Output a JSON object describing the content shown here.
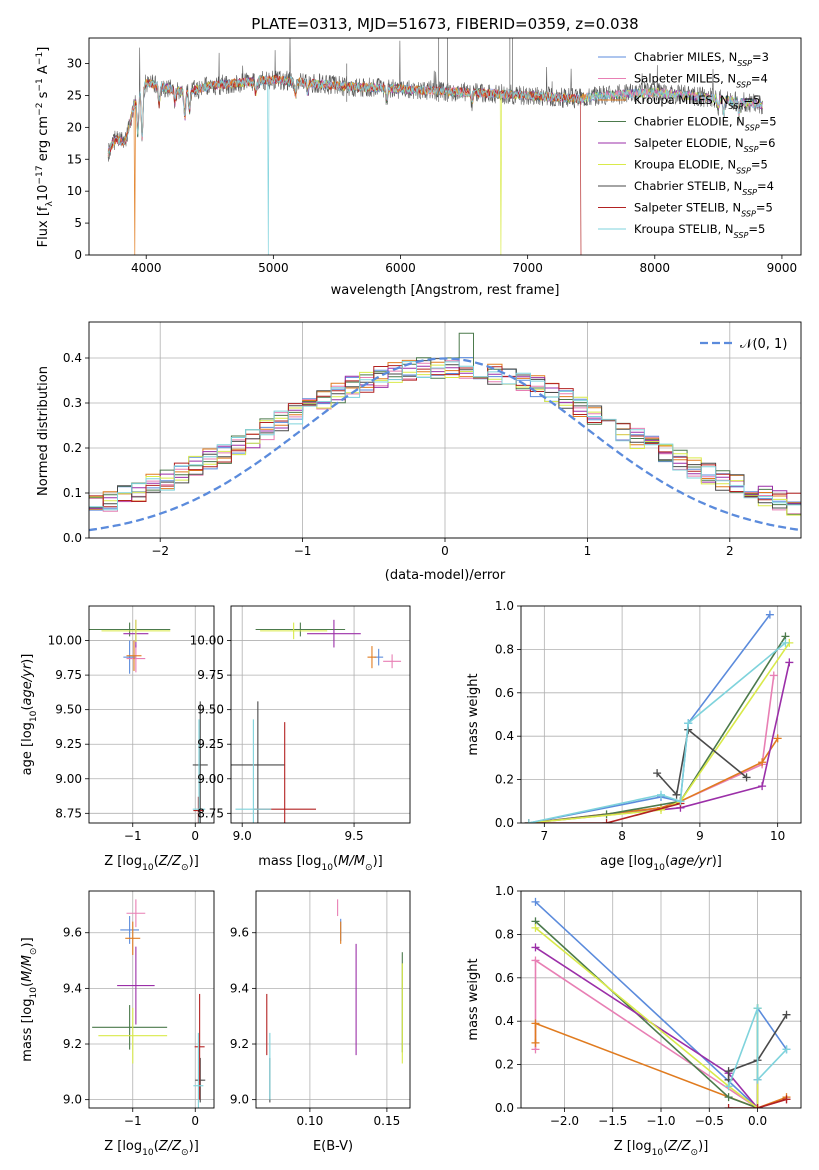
{
  "colors": [
    "#5b8bdc",
    "#e87fb4",
    "#e07b1f",
    "#4c7a4c",
    "#9b2fa8",
    "#d9ea4a",
    "#4a4a4a",
    "#b22222",
    "#7fd3dc"
  ],
  "chart_data": [
    {
      "id": "spectrum",
      "type": "line",
      "title": "PLATE=0313, MJD=51673, FIBERID=0359, z=0.038",
      "xlabel": "wavelength [Angstrom, rest frame]",
      "ylabel": "Flux [f_λ10^-17 erg cm^-2 s^-1 A^-1]",
      "xlim": [
        3550,
        9150
      ],
      "ylim": [
        0,
        34
      ],
      "xticks": [
        4000,
        5000,
        6000,
        7000,
        8000,
        9000
      ],
      "yticks": [
        0,
        5,
        10,
        15,
        20,
        25,
        30
      ],
      "grid": false,
      "legend_position": "top-right",
      "series": [
        {
          "name": "Chabrier MILES, N_SSP=3"
        },
        {
          "name": "Salpeter MILES, N_SSP=4"
        },
        {
          "name": "Kroupa MILES, N_SSP=5"
        },
        {
          "name": "Chabrier ELODIE, N_SSP=5"
        },
        {
          "name": "Salpeter ELODIE, N_SSP=6"
        },
        {
          "name": "Kroupa ELODIE, N_SSP=5"
        },
        {
          "name": "Chabrier STELIB, N_SSP=4"
        },
        {
          "name": "Salpeter STELIB, N_SSP=5"
        },
        {
          "name": "Kroupa STELIB, N_SSP=5"
        }
      ],
      "continuum": {
        "x": [
          3700,
          3800,
          3900,
          4000,
          4100,
          4300,
          4500,
          5000,
          5500,
          6000,
          6500,
          7000,
          7400,
          7600,
          8000,
          8500,
          8850
        ],
        "y": [
          16,
          21,
          24,
          27,
          26.5,
          25.5,
          26.5,
          27.5,
          26.5,
          26,
          25.5,
          25,
          24.5,
          25,
          25.5,
          24.5,
          23.5
        ]
      },
      "dropouts": [
        {
          "series": 2,
          "x": 3910
        },
        {
          "series": 8,
          "x": 4960
        },
        {
          "series": 5,
          "x": 6790
        },
        {
          "series": 7,
          "x": 7420
        }
      ]
    },
    {
      "id": "residuals",
      "type": "step",
      "xlabel": "(data-model)/error",
      "ylabel": "Normed distribution",
      "xlim": [
        -2.5,
        2.5
      ],
      "ylim": [
        0,
        0.48
      ],
      "xticks": [
        -2,
        -1,
        0,
        1,
        2
      ],
      "yticks": [
        0.0,
        0.1,
        0.2,
        0.3,
        0.4
      ],
      "grid": true,
      "legend_position": "top-right",
      "reference": {
        "name": "𝒩(0, 1)",
        "mean": 0,
        "sigma": 1
      },
      "bins": {
        "start": -2.5,
        "width": 0.1,
        "count": 50
      }
    },
    {
      "id": "age_vs_Z",
      "type": "errorbar",
      "xlabel": "Z [log10(Z/Z⊙)]",
      "ylabel": "age [log10(age/yr)]",
      "xlim": [
        -1.7,
        0.3
      ],
      "ylim": [
        8.68,
        10.25
      ],
      "xticks": [
        -1,
        0
      ],
      "yticks": [
        8.75,
        9.0,
        9.25,
        9.5,
        9.75,
        10.0
      ],
      "grid": true,
      "points": [
        {
          "s": 0,
          "x": -1.05,
          "y": 9.88,
          "xe": 0.1,
          "ye": 0.12
        },
        {
          "s": 1,
          "x": -0.95,
          "y": 9.87,
          "xe": 0.15,
          "ye": 0.1
        },
        {
          "s": 2,
          "x": -0.98,
          "y": 9.89,
          "xe": 0.12,
          "ye": 0.11
        },
        {
          "s": 3,
          "x": -1.05,
          "y": 10.08,
          "xe": 0.65,
          "ye": 0.05
        },
        {
          "s": 4,
          "x": -0.95,
          "y": 10.05,
          "xe": 0.2,
          "ye": 0.1
        },
        {
          "s": 5,
          "x": -0.95,
          "y": 10.07,
          "xe": 0.55,
          "ye": 0.08
        },
        {
          "s": 6,
          "x": 0.08,
          "y": 9.1,
          "xe": 0.12,
          "ye": 0.46
        },
        {
          "s": 7,
          "x": 0.05,
          "y": 8.77,
          "xe": 0.08,
          "ye": 0.1
        },
        {
          "s": 8,
          "x": 0.06,
          "y": 8.78,
          "xe": 0.1,
          "ye": 0.65
        }
      ]
    },
    {
      "id": "age_vs_mass",
      "type": "errorbar",
      "xlabel": "mass [log10(M/M⊙)]",
      "ylabel": "",
      "xlim": [
        8.95,
        9.75
      ],
      "ylim": [
        8.68,
        10.25
      ],
      "xticks": [
        9.0,
        9.5
      ],
      "yticks": [
        8.75,
        9.0,
        9.25,
        9.5,
        9.75,
        10.0
      ],
      "grid": true,
      "points": [
        {
          "s": 0,
          "x": 9.61,
          "y": 9.88,
          "xe": 0.02,
          "ye": 0.06
        },
        {
          "s": 1,
          "x": 9.67,
          "y": 9.85,
          "xe": 0.04,
          "ye": 0.05
        },
        {
          "s": 2,
          "x": 9.58,
          "y": 9.88,
          "xe": 0.02,
          "ye": 0.08
        },
        {
          "s": 3,
          "x": 9.26,
          "y": 10.08,
          "xe": 0.2,
          "ye": 0.05
        },
        {
          "s": 4,
          "x": 9.41,
          "y": 10.05,
          "xe": 0.12,
          "ye": 0.1
        },
        {
          "s": 5,
          "x": 9.23,
          "y": 10.07,
          "xe": 0.15,
          "ye": 0.06
        },
        {
          "s": 6,
          "x": 9.07,
          "y": 9.1,
          "xe": 0.12,
          "ye": 0.46
        },
        {
          "s": 7,
          "x": 9.19,
          "y": 8.78,
          "xe": 0.14,
          "ye": 0.63
        },
        {
          "s": 8,
          "x": 9.05,
          "y": 8.78,
          "xe": 0.08,
          "ye": 0.65
        }
      ]
    },
    {
      "id": "weight_vs_age",
      "type": "line",
      "xlabel": "age [log10(age/yr)]",
      "ylabel": "mass weight",
      "xlim": [
        6.7,
        10.3
      ],
      "ylim": [
        0,
        1.0
      ],
      "xticks": [
        7,
        8,
        9,
        10
      ],
      "yticks": [
        0.0,
        0.2,
        0.4,
        0.6,
        0.8,
        1.0
      ],
      "grid": true,
      "series": [
        {
          "s": 0,
          "x": [
            6.8,
            8.5,
            8.75,
            8.85,
            9.9
          ],
          "y": [
            0.0,
            0.12,
            0.1,
            0.46,
            0.96
          ]
        },
        {
          "s": 1,
          "x": [
            6.8,
            8.5,
            8.75,
            9.8,
            9.95
          ],
          "y": [
            0.0,
            0.07,
            0.1,
            0.27,
            0.68
          ]
        },
        {
          "s": 2,
          "x": [
            6.8,
            8.5,
            8.75,
            9.8,
            10.0
          ],
          "y": [
            0.0,
            0.07,
            0.1,
            0.28,
            0.39
          ]
        },
        {
          "s": 3,
          "x": [
            6.8,
            7.8,
            8.75,
            10.1
          ],
          "y": [
            0.0,
            0.04,
            0.1,
            0.86
          ]
        },
        {
          "s": 4,
          "x": [
            6.8,
            8.75,
            9.8,
            10.15
          ],
          "y": [
            0.0,
            0.07,
            0.17,
            0.74
          ]
        },
        {
          "s": 5,
          "x": [
            6.8,
            8.5,
            8.75,
            10.15
          ],
          "y": [
            0.0,
            0.06,
            0.1,
            0.83
          ]
        },
        {
          "s": 6,
          "x": [
            8.45,
            8.7,
            8.85,
            9.6
          ],
          "y": [
            0.23,
            0.13,
            0.43,
            0.21
          ]
        },
        {
          "s": 7,
          "x": [
            6.8,
            7.8,
            8.75
          ],
          "y": [
            0.0,
            0.0,
            0.09
          ]
        },
        {
          "s": 8,
          "x": [
            6.8,
            8.5,
            8.75,
            8.85,
            10.1
          ],
          "y": [
            0.0,
            0.13,
            0.1,
            0.46,
            0.83
          ]
        }
      ]
    },
    {
      "id": "mass_vs_Z",
      "type": "errorbar",
      "xlabel": "Z [log10(Z/Z⊙)]",
      "ylabel": "mass [log10(M/M⊙)]",
      "xlim": [
        -1.7,
        0.3
      ],
      "ylim": [
        8.97,
        9.75
      ],
      "xticks": [
        -1,
        0
      ],
      "yticks": [
        9.0,
        9.2,
        9.4,
        9.6
      ],
      "grid": true,
      "points": [
        {
          "s": 0,
          "x": -1.05,
          "y": 9.61,
          "xe": 0.15,
          "ye": 0.05
        },
        {
          "s": 1,
          "x": -0.95,
          "y": 9.67,
          "xe": 0.15,
          "ye": 0.05
        },
        {
          "s": 2,
          "x": -1.0,
          "y": 9.58,
          "xe": 0.12,
          "ye": 0.06
        },
        {
          "s": 3,
          "x": -1.05,
          "y": 9.26,
          "xe": 0.6,
          "ye": 0.08
        },
        {
          "s": 4,
          "x": -0.95,
          "y": 9.41,
          "xe": 0.3,
          "ye": 0.14
        },
        {
          "s": 5,
          "x": -1.0,
          "y": 9.23,
          "xe": 0.55,
          "ye": 0.1
        },
        {
          "s": 6,
          "x": 0.08,
          "y": 9.07,
          "xe": 0.08,
          "ye": 0.08
        },
        {
          "s": 7,
          "x": 0.07,
          "y": 9.19,
          "xe": 0.08,
          "ye": 0.19
        },
        {
          "s": 8,
          "x": 0.05,
          "y": 9.05,
          "xe": 0.08,
          "ye": 0.19
        }
      ]
    },
    {
      "id": "mass_vs_EBV",
      "type": "errorbar",
      "xlabel": "E(B-V)",
      "ylabel": "",
      "xlim": [
        0.065,
        0.165
      ],
      "ylim": [
        8.97,
        9.75
      ],
      "xticks": [
        0.1,
        0.15
      ],
      "yticks": [
        9.0,
        9.2,
        9.4,
        9.6
      ],
      "grid": true,
      "points": [
        {
          "s": 0,
          "x": 0.12,
          "y": 9.61,
          "xe": 0,
          "ye": 0.04
        },
        {
          "s": 1,
          "x": 0.118,
          "y": 9.69,
          "xe": 0,
          "ye": 0.03
        },
        {
          "s": 2,
          "x": 0.12,
          "y": 9.6,
          "xe": 0,
          "ye": 0.04
        },
        {
          "s": 3,
          "x": 0.16,
          "y": 9.35,
          "xe": 0,
          "ye": 0.18
        },
        {
          "s": 4,
          "x": 0.13,
          "y": 9.36,
          "xe": 0,
          "ye": 0.2
        },
        {
          "s": 5,
          "x": 0.16,
          "y": 9.31,
          "xe": 0,
          "ye": 0.18
        },
        {
          "s": 6,
          "x": 0.074,
          "y": 9.07,
          "xe": 0,
          "ye": 0.08
        },
        {
          "s": 7,
          "x": 0.072,
          "y": 9.27,
          "xe": 0,
          "ye": 0.11
        },
        {
          "s": 8,
          "x": 0.074,
          "y": 9.12,
          "xe": 0,
          "ye": 0.12
        }
      ]
    },
    {
      "id": "weight_vs_Z",
      "type": "line",
      "xlabel": "Z [log10(Z/Z⊙)]",
      "ylabel": "mass weight",
      "xlim": [
        -2.45,
        0.45
      ],
      "ylim": [
        0,
        1.0
      ],
      "xticks": [
        -2.0,
        -1.5,
        -1.0,
        -0.5,
        0.0
      ],
      "yticks": [
        0.0,
        0.2,
        0.4,
        0.6,
        0.8,
        1.0
      ],
      "grid": true,
      "series": [
        {
          "s": 0,
          "x": [
            -2.3,
            0.0,
            0.0,
            0.3
          ],
          "y": [
            0.95,
            0.0,
            0.46,
            0.27
          ]
        },
        {
          "s": 1,
          "x": [
            -2.3,
            -2.3,
            0.0,
            0.3
          ],
          "y": [
            0.27,
            0.68,
            0.0,
            0.04
          ]
        },
        {
          "s": 2,
          "x": [
            -2.3,
            -2.3,
            0.0,
            0.3
          ],
          "y": [
            0.3,
            0.39,
            0.0,
            0.05
          ]
        },
        {
          "s": 3,
          "x": [
            -2.3,
            -0.3,
            0.0,
            0.0
          ],
          "y": [
            0.86,
            0.05,
            0.0,
            0.46
          ]
        },
        {
          "s": 4,
          "x": [
            -2.3,
            -0.3,
            0.0,
            0.0
          ],
          "y": [
            0.74,
            0.16,
            0.0,
            0.13
          ]
        },
        {
          "s": 5,
          "x": [
            -2.3,
            -0.3,
            0.0,
            0.0
          ],
          "y": [
            0.83,
            0.1,
            0.0,
            0.46
          ]
        },
        {
          "s": 6,
          "x": [
            -0.3,
            -0.3,
            0.0,
            0.3
          ],
          "y": [
            0.13,
            0.17,
            0.22,
            0.43
          ]
        },
        {
          "s": 7,
          "x": [
            -0.3,
            0.0,
            0.3
          ],
          "y": [
            0.0,
            0.0,
            0.04
          ]
        },
        {
          "s": 8,
          "x": [
            -0.3,
            0.0,
            0.0,
            0.3
          ],
          "y": [
            0.1,
            0.46,
            0.13,
            0.27
          ]
        }
      ]
    }
  ]
}
